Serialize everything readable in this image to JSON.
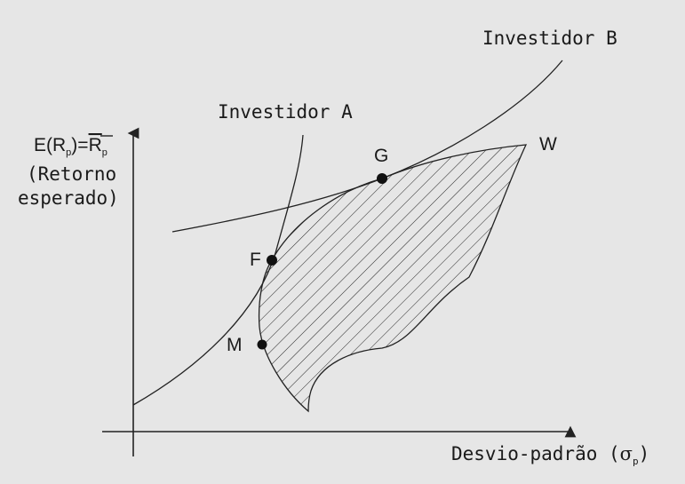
{
  "labels": {
    "investor_a": "Investidor A",
    "investor_b": "Investidor B",
    "point_g": "G",
    "point_f": "F",
    "point_m": "M",
    "point_w": "W",
    "yaxis_line1_pre": "E(R",
    "yaxis_line1_sub": "p",
    "yaxis_line1_mid": ")=",
    "yaxis_line1_bar": "R",
    "yaxis_line1_sub2": "p",
    "yaxis_line2": "(Retorno",
    "yaxis_line3": "esperado)",
    "xaxis_pre": "Desvio-padrão (",
    "xaxis_sigma": "σ",
    "xaxis_sub": "p",
    "xaxis_post": ")"
  },
  "colors": {
    "background": "#e6e6e6",
    "ink": "#1a1a1a"
  }
}
